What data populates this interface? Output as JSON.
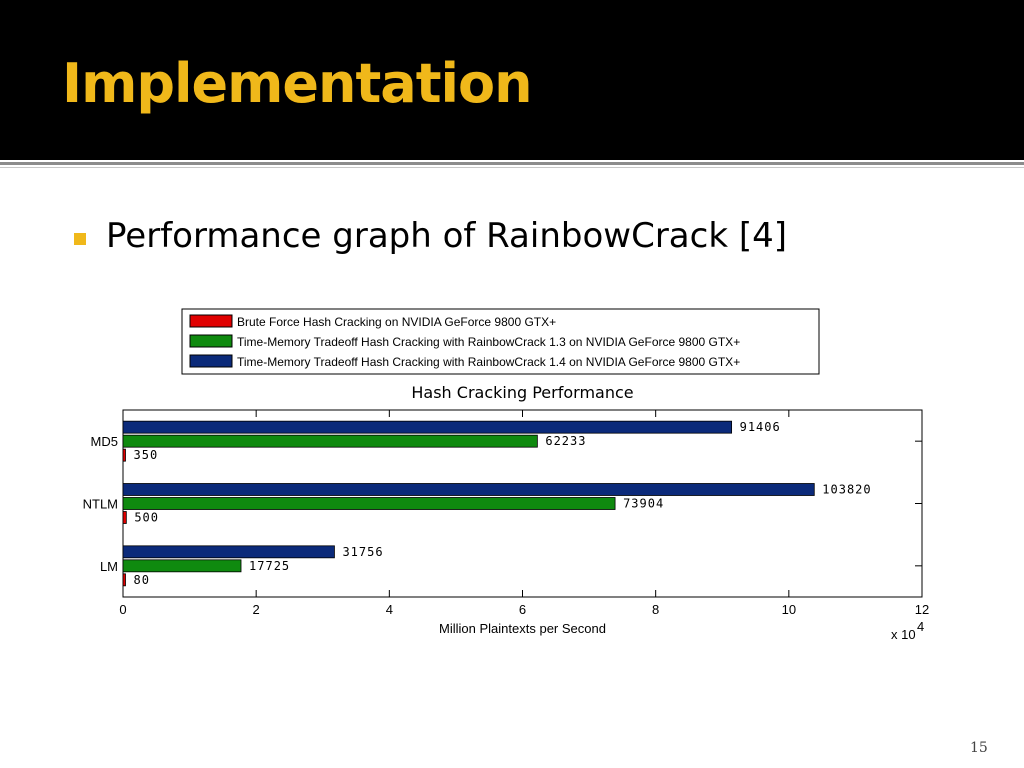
{
  "slide": {
    "title": "Implementation",
    "bullet": "Performance graph of RainbowCrack [4]",
    "page_number": "15"
  },
  "colors": {
    "header_bg": "#000000",
    "title": "#f0b81a",
    "bullet": "#f0b81a"
  },
  "chart_data": {
    "type": "bar",
    "orientation": "horizontal",
    "title": "Hash Cracking Performance",
    "xlabel": "Million Plaintexts per Second",
    "ylabel": "",
    "x_scale_label": "x 10",
    "x_scale_exponent": "4",
    "xlim": [
      0,
      120000
    ],
    "x_ticks": [
      0,
      20000,
      40000,
      60000,
      80000,
      100000,
      120000
    ],
    "x_tick_labels": [
      "0",
      "2",
      "4",
      "6",
      "8",
      "10",
      "12"
    ],
    "categories": [
      "MD5",
      "NTLM",
      "LM"
    ],
    "legend_position": "top",
    "series": [
      {
        "name": "Time-Memory Tradeoff Hash Cracking with RainbowCrack 1.4 on NVIDIA GeForce 9800 GTX+",
        "color": "#0b2a7a",
        "values": [
          91406,
          103820,
          31756
        ]
      },
      {
        "name": "Time-Memory Tradeoff Hash Cracking with RainbowCrack 1.3 on NVIDIA GeForce 9800 GTX+",
        "color": "#0f8a0f",
        "values": [
          62233,
          73904,
          17725
        ]
      },
      {
        "name": "Brute Force Hash Cracking on NVIDIA GeForce 9800 GTX+",
        "color": "#e00000",
        "values": [
          350,
          500,
          80
        ]
      }
    ],
    "legend_order": [
      2,
      1,
      0
    ]
  }
}
